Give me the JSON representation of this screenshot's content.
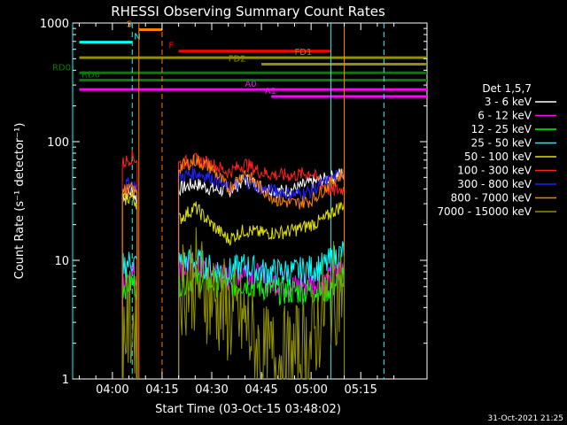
{
  "chart_data": {
    "type": "line",
    "title": "RHESSI Observing Summary Count Rates",
    "xlabel": "Start Time (03-Oct-15 03:48:02)",
    "ylabel": "Count Rate (s⁻¹ detector⁻¹)",
    "yscale": "log",
    "ylim": [
      1,
      1000
    ],
    "xlim_minutes": [
      -12,
      95
    ],
    "x_ticks": [
      "04:00",
      "04:15",
      "04:30",
      "04:45",
      "05:00",
      "05:15"
    ],
    "x_tick_minutes": [
      0,
      15,
      30,
      45,
      60,
      75
    ],
    "y_ticks": [
      "1",
      "10",
      "100",
      "1000"
    ],
    "y_tick_values": [
      1,
      10,
      100,
      1000
    ],
    "legend_title": "Det 1,5,7",
    "legend_position": "right",
    "series": [
      {
        "name": "3 - 6 keV",
        "color": "#ffffff",
        "values": [
          [
            3,
            35
          ],
          [
            6,
            38
          ],
          [
            7.5,
            32
          ],
          [
            20,
            40
          ],
          [
            25,
            44
          ],
          [
            30,
            40
          ],
          [
            35,
            38
          ],
          [
            40,
            48
          ],
          [
            45,
            42
          ],
          [
            50,
            38
          ],
          [
            55,
            40
          ],
          [
            60,
            45
          ],
          [
            64,
            48
          ],
          [
            66,
            50
          ],
          [
            70,
            55
          ]
        ]
      },
      {
        "name": "6 - 12 keV",
        "color": "#ff00ff",
        "values": [
          [
            3,
            7
          ],
          [
            6,
            8
          ],
          [
            7.5,
            7
          ],
          [
            20,
            8.5
          ],
          [
            25,
            9
          ],
          [
            30,
            8
          ],
          [
            35,
            7
          ],
          [
            40,
            8.5
          ],
          [
            45,
            7
          ],
          [
            50,
            6.5
          ],
          [
            55,
            6
          ],
          [
            60,
            6.5
          ],
          [
            64,
            6.5
          ],
          [
            66,
            7
          ],
          [
            70,
            9
          ]
        ]
      },
      {
        "name": "12 - 25 keV",
        "color": "#00ff00",
        "values": [
          [
            3,
            6
          ],
          [
            6,
            6.5
          ],
          [
            7.5,
            6
          ],
          [
            20,
            6.5
          ],
          [
            25,
            7
          ],
          [
            30,
            6.5
          ],
          [
            35,
            6
          ],
          [
            40,
            6.5
          ],
          [
            45,
            6
          ],
          [
            50,
            5.5
          ],
          [
            55,
            5.5
          ],
          [
            60,
            5.5
          ],
          [
            64,
            5.5
          ],
          [
            66,
            6
          ],
          [
            70,
            7
          ]
        ]
      },
      {
        "name": "25 - 50 keV",
        "color": "#00ffff",
        "values": [
          [
            3,
            9
          ],
          [
            6,
            10
          ],
          [
            7.5,
            9
          ],
          [
            20,
            9.5
          ],
          [
            25,
            10
          ],
          [
            30,
            8.5
          ],
          [
            35,
            8
          ],
          [
            40,
            9
          ],
          [
            45,
            8
          ],
          [
            50,
            8
          ],
          [
            55,
            8
          ],
          [
            60,
            8.5
          ],
          [
            64,
            9
          ],
          [
            66,
            10
          ],
          [
            70,
            12
          ]
        ]
      },
      {
        "name": "50 - 100 keV",
        "color": "#e0e000",
        "values": [
          [
            3,
            32
          ],
          [
            6,
            34
          ],
          [
            7.5,
            30
          ],
          [
            20,
            22
          ],
          [
            25,
            28
          ],
          [
            30,
            20
          ],
          [
            35,
            15
          ],
          [
            40,
            18
          ],
          [
            45,
            17
          ],
          [
            50,
            17
          ],
          [
            55,
            18
          ],
          [
            60,
            20
          ],
          [
            64,
            22
          ],
          [
            66,
            25
          ],
          [
            70,
            30
          ]
        ]
      },
      {
        "name": "100 - 300 keV",
        "color": "#ff2020",
        "values": [
          [
            3,
            65
          ],
          [
            6,
            75
          ],
          [
            7.5,
            70
          ],
          [
            20,
            65
          ],
          [
            25,
            70
          ],
          [
            30,
            65
          ],
          [
            35,
            55
          ],
          [
            40,
            65
          ],
          [
            45,
            55
          ],
          [
            50,
            52
          ],
          [
            55,
            52
          ],
          [
            60,
            55
          ],
          [
            64,
            42
          ],
          [
            66,
            38
          ],
          [
            70,
            40
          ]
        ]
      },
      {
        "name": "300 - 800 keV",
        "color": "#2020ff",
        "values": [
          [
            3,
            42
          ],
          [
            6,
            45
          ],
          [
            7.5,
            40
          ],
          [
            20,
            50
          ],
          [
            25,
            55
          ],
          [
            30,
            50
          ],
          [
            35,
            40
          ],
          [
            40,
            48
          ],
          [
            45,
            40
          ],
          [
            50,
            38
          ],
          [
            55,
            36
          ],
          [
            60,
            38
          ],
          [
            64,
            45
          ],
          [
            66,
            48
          ],
          [
            70,
            55
          ]
        ]
      },
      {
        "name": "800 - 7000 keV",
        "color": "#ff8000",
        "values": [
          [
            3,
            38
          ],
          [
            6,
            40
          ],
          [
            7.5,
            36
          ],
          [
            20,
            60
          ],
          [
            25,
            70
          ],
          [
            30,
            60
          ],
          [
            35,
            40
          ],
          [
            40,
            55
          ],
          [
            45,
            40
          ],
          [
            50,
            32
          ],
          [
            55,
            30
          ],
          [
            60,
            32
          ],
          [
            64,
            40
          ],
          [
            66,
            45
          ],
          [
            70,
            55
          ]
        ]
      },
      {
        "name": "7000 - 15000 keV",
        "color": "#909000",
        "values": [
          [
            3,
            2.5
          ],
          [
            6,
            3
          ],
          [
            7.5,
            2.5
          ],
          [
            20,
            6
          ],
          [
            25,
            7
          ],
          [
            30,
            5
          ],
          [
            35,
            3.5
          ],
          [
            40,
            3
          ],
          [
            45,
            1.5
          ],
          [
            50,
            1.5
          ],
          [
            55,
            1.5
          ],
          [
            60,
            2
          ],
          [
            64,
            4
          ],
          [
            66,
            5
          ],
          [
            70,
            6
          ]
        ]
      }
    ],
    "flag_bars": [
      {
        "label": "S",
        "color": "#ff8000",
        "t_start": 8,
        "t_end": 15,
        "level": 880
      },
      {
        "label": "N",
        "color": "#00ffff",
        "t_start": -10,
        "t_end": 6,
        "level": 690
      },
      {
        "label": "F",
        "color": "#ff0000",
        "t_start": 20,
        "t_end": 66,
        "level": 580
      },
      {
        "label": "FD1",
        "color": "#909000",
        "t_start": -10,
        "t_end": 95,
        "level": 510
      },
      {
        "label": "FD2",
        "color": "#909000",
        "t_start": 45,
        "t_end": 95,
        "level": 450
      },
      {
        "label": "RD0",
        "color": "#008000",
        "t_start": -10,
        "t_end": 95,
        "level": 380
      },
      {
        "label": "RD6",
        "color": "#008000",
        "t_start": -10,
        "t_end": 95,
        "level": 330
      },
      {
        "label": "A0",
        "color": "#ff00ff",
        "t_start": -10,
        "t_end": 95,
        "level": 275
      },
      {
        "label": "A1",
        "color": "#ff00ff",
        "t_start": 48,
        "t_end": 95,
        "level": 240
      }
    ],
    "vertical_markers": [
      {
        "t": -12,
        "color": "#00ffff",
        "style": "solid"
      },
      {
        "t": 6,
        "color": "#00ffff",
        "style": "dashed"
      },
      {
        "t": 8,
        "color": "#ff8000",
        "style": "solid"
      },
      {
        "t": 15,
        "color": "#ff8000",
        "style": "dashed"
      },
      {
        "t": 66,
        "color": "#00ffff",
        "style": "solid"
      },
      {
        "t": 70,
        "color": "#ff8000",
        "style": "solid"
      },
      {
        "t": 82,
        "color": "#00ffff",
        "style": "dashed"
      }
    ],
    "footer_timestamp": "31-Oct-2021 21:25"
  }
}
